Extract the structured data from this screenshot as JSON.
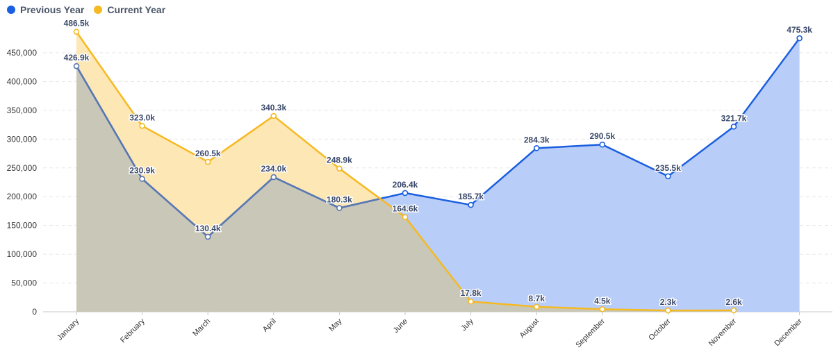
{
  "legend": {
    "previous_label": "Previous Year",
    "current_label": "Current Year"
  },
  "colors": {
    "previous": "#1a5fe0",
    "current": "#f5b922",
    "previous_fill": "#b8cdf8",
    "current_fill": "#fde7b4",
    "overlap_fill": "#c9c8b8",
    "overlap_line": "#5a78b2"
  },
  "chart_data": {
    "type": "area",
    "categories": [
      "January",
      "February",
      "March",
      "April",
      "May",
      "June",
      "July",
      "August",
      "September",
      "October",
      "November",
      "December"
    ],
    "series": [
      {
        "name": "Previous Year",
        "values": [
          426900,
          230900,
          130400,
          234000,
          180300,
          206400,
          185700,
          284300,
          290500,
          235500,
          321700,
          475300
        ],
        "labels": [
          "426.9k",
          "230.9k",
          "130.4k",
          "234.0k",
          "180.3k",
          "206.4k",
          "185.7k",
          "284.3k",
          "290.5k",
          "235.5k",
          "321.7k",
          "475.3k"
        ]
      },
      {
        "name": "Current Year",
        "values": [
          486500,
          323000,
          260500,
          340300,
          248900,
          164600,
          17800,
          8700,
          4500,
          2300,
          2600,
          null
        ],
        "labels": [
          "486.5k",
          "323.0k",
          "260.5k",
          "340.3k",
          "248.9k",
          "164.6k",
          "17.8k",
          "8.7k",
          "4.5k",
          "2.3k",
          "2.6k",
          ""
        ]
      }
    ],
    "yticks": [
      "0",
      "50,000",
      "100,000",
      "150,000",
      "200,000",
      "250,000",
      "300,000",
      "350,000",
      "400,000",
      "450,000"
    ],
    "ylim": [
      0,
      450000
    ],
    "grid": true,
    "legend_position": "top-left"
  }
}
